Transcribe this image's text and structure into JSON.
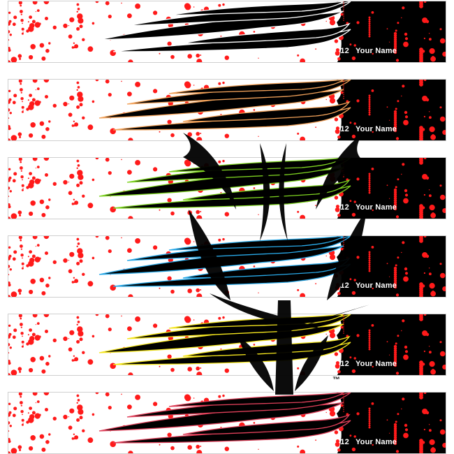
{
  "wraps": [
    {
      "number": "12",
      "name": "Your Name",
      "outline_color": "#ffffff"
    },
    {
      "number": "12",
      "name": "Your Name",
      "outline_color": "#f2a25a"
    },
    {
      "number": "12",
      "name": "Your Name",
      "outline_color": "#7ed321"
    },
    {
      "number": "12",
      "name": "Your Name",
      "outline_color": "#29a9e8"
    },
    {
      "number": "12",
      "name": "Your Name",
      "outline_color": "#f5e61e"
    },
    {
      "number": "12",
      "name": "Your Name",
      "outline_color": "#e0405a"
    }
  ],
  "colors": {
    "splatter": "#ff1a1a",
    "flame": "#000000",
    "end_panel": "#000000",
    "background": "#ffffff"
  },
  "watermark": {
    "icon": "tribal-emblem-icon",
    "trademark": "™"
  }
}
